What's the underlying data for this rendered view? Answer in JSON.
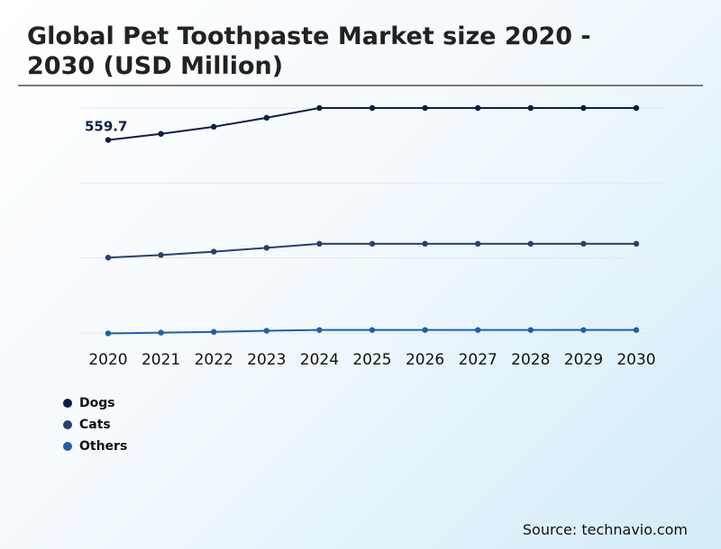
{
  "title": "Global Pet Toothpaste Market size 2020 - 2030 (USD Million)",
  "source": "Source: technavio.com",
  "colors": {
    "Dogs": "#0b1f45",
    "Cats": "#2b3f6e",
    "Others": "#1e5fa8",
    "grid": "#e4e8ec"
  },
  "chart_data": {
    "type": "line",
    "title": "Global Pet Toothpaste Market size 2020 - 2030 (USD Million)",
    "xlabel": "",
    "ylabel": "",
    "categories": [
      "2020",
      "2021",
      "2022",
      "2023",
      "2024",
      "2025",
      "2026",
      "2027",
      "2028",
      "2029",
      "2030"
    ],
    "series": [
      {
        "name": "Dogs",
        "values": [
          559.7,
          576,
          595,
          619,
          645,
          645,
          645,
          645,
          645,
          645,
          645
        ]
      },
      {
        "name": "Cats",
        "values": [
          246,
          253,
          262,
          272,
          283,
          283,
          283,
          283,
          283,
          283,
          283
        ]
      },
      {
        "name": "Others",
        "values": [
          44,
          46,
          48,
          51,
          53,
          53,
          53,
          53,
          53,
          53,
          53
        ]
      }
    ],
    "annotations": [
      {
        "series": "Dogs",
        "category": "2020",
        "label": "559.7"
      }
    ],
    "ylim": [
      45,
      645
    ],
    "grid": true,
    "legend": "bottom-left"
  }
}
